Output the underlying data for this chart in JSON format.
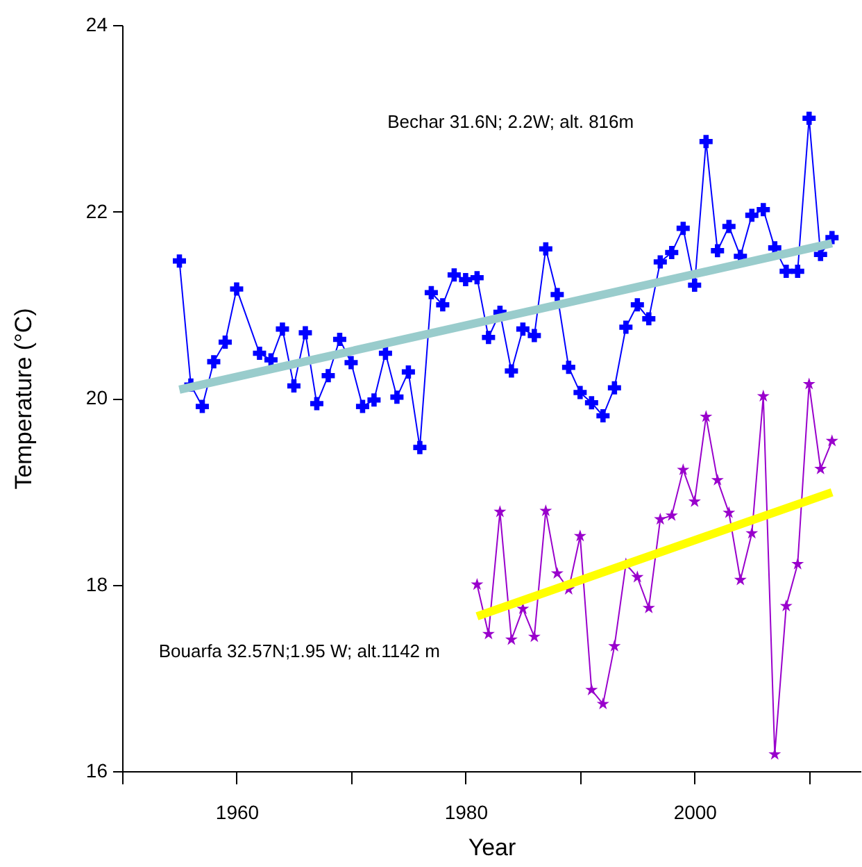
{
  "chart_data": {
    "type": "line",
    "xlabel": "Year",
    "ylabel": "Temperature (°C)",
    "xlim": [
      1950,
      2014.5
    ],
    "xticks": [
      {
        "value": 1950,
        "label": null
      },
      1960,
      {
        "value": 1970,
        "label": null
      },
      1980,
      {
        "value": 1990,
        "label": null
      },
      2000,
      {
        "value": 2010,
        "label": null
      }
    ],
    "ylim": [
      16,
      24
    ],
    "yticks": [
      16,
      18,
      20,
      22,
      24
    ],
    "grid": false,
    "annotations": [
      "Bechar 31.6N; 2.2W; alt. 816m",
      "Bouarfa 32.57N;1.95 W; alt.1142 m"
    ],
    "series": [
      {
        "color": "#0000ff",
        "marker": "cross",
        "x": [
          1955,
          1956,
          1957,
          1958,
          1959,
          1960,
          1962,
          1963,
          1964,
          1965,
          1966,
          1967,
          1968,
          1969,
          1970,
          1971,
          1972,
          1973,
          1974,
          1975,
          1976,
          1977,
          1978,
          1979,
          1980,
          1981,
          1982,
          1983,
          1984,
          1985,
          1986,
          1987,
          1988,
          1989,
          1990,
          1991,
          1992,
          1993,
          1994,
          1995,
          1996,
          1997,
          1998,
          1999,
          2000,
          2001,
          2002,
          2003,
          2004,
          2005,
          2006,
          2007,
          2008,
          2009,
          2010,
          2011,
          2012
        ],
        "values": [
          21.47,
          20.14,
          19.91,
          20.39,
          20.6,
          21.17,
          20.48,
          20.41,
          20.74,
          20.13,
          20.7,
          19.94,
          20.24,
          20.63,
          20.38,
          19.91,
          19.98,
          20.48,
          20.01,
          20.28,
          19.47,
          21.13,
          21.0,
          21.32,
          21.27,
          21.29,
          20.65,
          20.92,
          20.29,
          20.74,
          20.67,
          21.6,
          21.11,
          20.33,
          20.06,
          19.95,
          19.81,
          20.11,
          20.76,
          21.0,
          20.85,
          21.46,
          21.56,
          21.82,
          21.21,
          22.75,
          21.58,
          21.84,
          21.52,
          21.96,
          22.02,
          21.61,
          21.36,
          21.36,
          23.0,
          21.54,
          21.72
        ]
      },
      {
        "color": "#99cccc",
        "marker": "none",
        "x": [
          1955,
          2012
        ],
        "values": [
          20.09,
          21.66
        ]
      },
      {
        "color": "#9900cc",
        "marker": "star",
        "x": [
          1981,
          1982,
          1983,
          1984,
          1985,
          1986,
          1987,
          1988,
          1989,
          1990,
          1991,
          1992,
          1993,
          1994,
          1995,
          1996,
          1997,
          1998,
          1999,
          2000,
          2001,
          2002,
          2003,
          2004,
          2005,
          2006,
          2007,
          2008,
          2009,
          2010,
          2011,
          2012
        ],
        "values": [
          18.0,
          17.47,
          18.78,
          17.41,
          17.74,
          17.44,
          18.79,
          18.12,
          17.95,
          18.52,
          16.87,
          16.72,
          17.34,
          18.22,
          18.08,
          17.75,
          18.7,
          18.74,
          19.23,
          18.89,
          19.8,
          19.12,
          18.77,
          18.05,
          18.55,
          20.02,
          16.18,
          17.77,
          18.22,
          20.15,
          19.24,
          19.54
        ]
      },
      {
        "color": "#ffff00",
        "marker": "none",
        "x": [
          1981,
          2012
        ],
        "values": [
          17.66,
          18.99
        ]
      }
    ]
  }
}
